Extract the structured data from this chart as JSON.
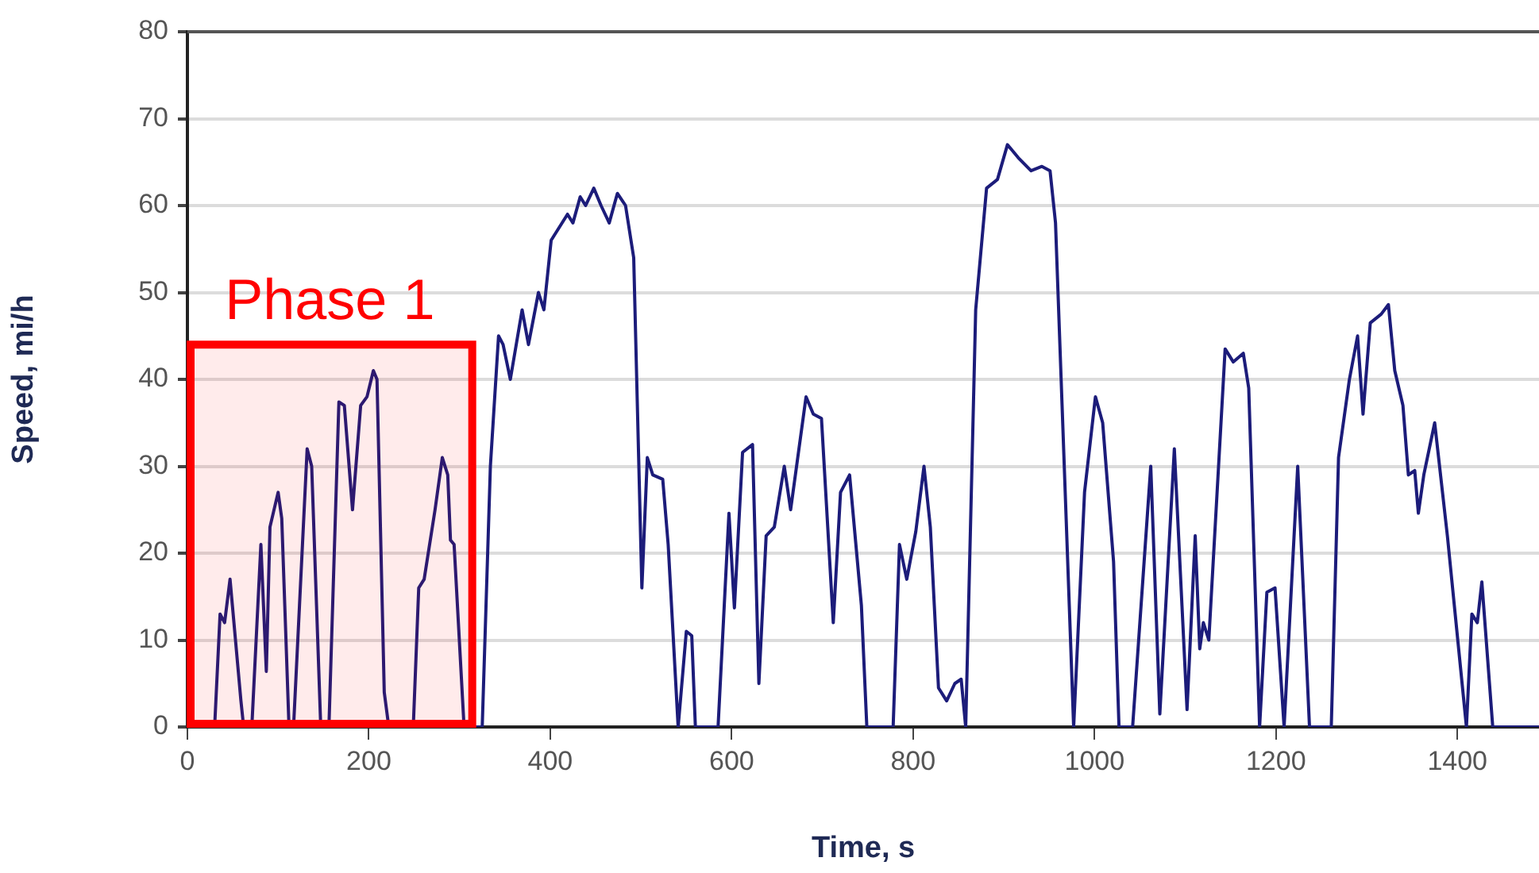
{
  "chart_data": {
    "type": "line",
    "xlabel": "Time, s",
    "ylabel": "Speed, mi/h",
    "x": [
      30,
      36,
      41,
      47,
      59,
      62,
      71,
      81,
      87,
      91,
      100,
      104,
      112,
      117,
      132,
      137,
      147,
      156,
      167,
      173,
      182,
      191,
      198,
      205,
      209,
      217,
      222,
      249,
      255,
      261,
      273,
      281,
      287,
      290,
      294,
      305,
      325,
      334,
      343,
      348,
      356,
      369,
      376,
      387,
      393,
      401,
      419,
      425,
      433,
      439,
      448,
      456,
      465,
      474,
      483,
      492,
      501,
      507,
      513,
      524,
      530,
      541,
      550,
      556,
      560,
      585,
      597,
      603,
      612,
      623,
      630,
      638,
      647,
      658,
      665,
      682,
      690,
      699,
      712,
      720,
      730,
      743,
      749,
      778,
      785,
      793,
      803,
      812,
      819,
      828,
      837,
      846,
      853,
      858,
      869,
      881,
      893,
      904,
      916,
      930,
      942,
      951,
      957,
      977,
      989,
      1001,
      1009,
      1021,
      1027,
      1042,
      1062,
      1072,
      1088,
      1102,
      1111,
      1116,
      1120,
      1126,
      1144,
      1153,
      1164,
      1170,
      1182,
      1190,
      1199,
      1209,
      1224,
      1237,
      1261,
      1269,
      1281,
      1290,
      1296,
      1304,
      1316,
      1324,
      1331,
      1340,
      1346,
      1353,
      1357,
      1363,
      1375,
      1389,
      1410,
      1416,
      1422,
      1427,
      1439,
      1490
    ],
    "series": [
      {
        "color": "#1c1c7a",
        "values": [
          0,
          13,
          12,
          17,
          3,
          0,
          0,
          21,
          6.4,
          23,
          27,
          24,
          0,
          0,
          32,
          30,
          0,
          0,
          37.4,
          37,
          25,
          37,
          38,
          41,
          40,
          4,
          0,
          0,
          16,
          17,
          25,
          31,
          29,
          21.5,
          21,
          0,
          0,
          30,
          45,
          44,
          40,
          48,
          44,
          50,
          48,
          56,
          59,
          58,
          61,
          60,
          62,
          60,
          58,
          61.4,
          60,
          54,
          16,
          31,
          29,
          28.5,
          21,
          0,
          11,
          10.5,
          0,
          0,
          24.6,
          13.7,
          31.6,
          32.5,
          5,
          22,
          23,
          30,
          25,
          38,
          36,
          35.5,
          12,
          27,
          29,
          14,
          0,
          0,
          21,
          17,
          22.5,
          30,
          23,
          4.5,
          3,
          5,
          5.5,
          0,
          48,
          62,
          63,
          67,
          65.5,
          64,
          64.5,
          64,
          58,
          0,
          27,
          38,
          35,
          19,
          0,
          0,
          30,
          1.5,
          32,
          2,
          22,
          9,
          12,
          10,
          43.5,
          42,
          43,
          39,
          0,
          15.5,
          16,
          0,
          30,
          0,
          0,
          31,
          40,
          45,
          36,
          46.5,
          47.5,
          48.6,
          41,
          37,
          29,
          29.5,
          24.6,
          29,
          35,
          22,
          0,
          13,
          12,
          16.7,
          0,
          0
        ]
      }
    ],
    "xlim": [
      0,
      1490
    ],
    "xticks": [
      0,
      200,
      400,
      600,
      800,
      1000,
      1200,
      1400
    ],
    "ylim": [
      0,
      80
    ],
    "yticks": [
      0,
      10,
      20,
      30,
      40,
      50,
      60,
      70,
      80
    ],
    "grid": "y",
    "marker": "none",
    "line_style": "solid",
    "bands": [
      {
        "axis": "x",
        "from": 0,
        "to": 314,
        "label": "Phase 1",
        "color": "#ff0000"
      }
    ]
  }
}
